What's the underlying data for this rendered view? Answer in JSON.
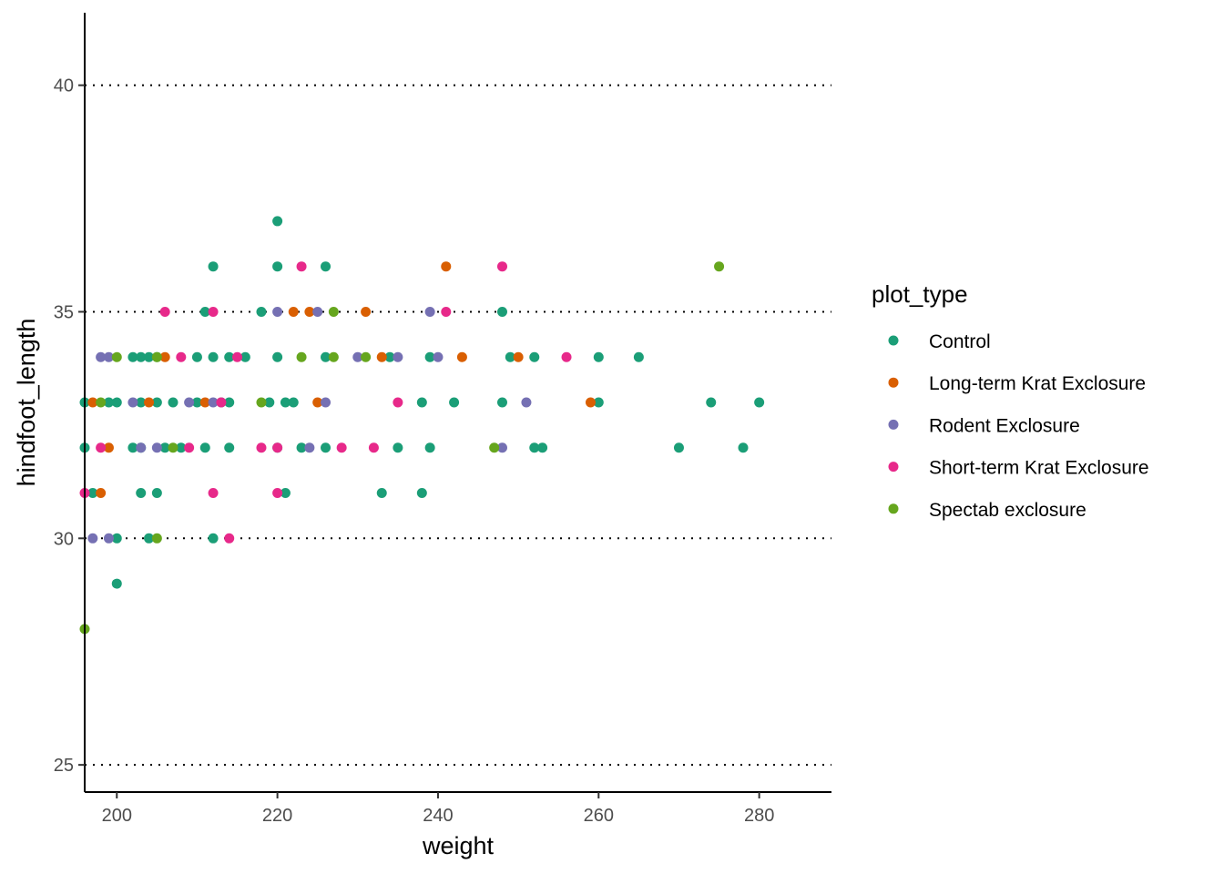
{
  "chart_data": {
    "type": "scatter",
    "title": "",
    "xlabel": "weight",
    "ylabel": "hindfoot_length",
    "xlim": [
      196,
      289
    ],
    "ylim": [
      24.4,
      41.6
    ],
    "x_ticks": [
      200,
      220,
      240,
      260,
      280
    ],
    "y_ticks": [
      25,
      30,
      35,
      40
    ],
    "grid": "horizontal dotted major lines",
    "legend": {
      "title": "plot_type",
      "placement": "right"
    },
    "series": [
      {
        "name": "Control",
        "color": "#1b9e77",
        "points": [
          [
            212,
            36
          ],
          [
            220,
            37
          ],
          [
            220,
            36
          ],
          [
            226,
            36
          ],
          [
            211,
            35
          ],
          [
            218,
            35
          ],
          [
            248,
            35
          ],
          [
            202,
            34
          ],
          [
            203,
            34
          ],
          [
            204,
            34
          ],
          [
            205,
            34
          ],
          [
            210,
            34
          ],
          [
            212,
            34
          ],
          [
            214,
            34
          ],
          [
            216,
            34
          ],
          [
            220,
            34
          ],
          [
            226,
            34
          ],
          [
            234,
            34
          ],
          [
            239,
            34
          ],
          [
            249,
            34
          ],
          [
            252,
            34
          ],
          [
            260,
            34
          ],
          [
            265,
            34
          ],
          [
            196,
            33
          ],
          [
            199,
            33
          ],
          [
            200,
            33
          ],
          [
            203,
            33
          ],
          [
            205,
            33
          ],
          [
            207,
            33
          ],
          [
            210,
            33
          ],
          [
            213,
            33
          ],
          [
            214,
            33
          ],
          [
            219,
            33
          ],
          [
            221,
            33
          ],
          [
            222,
            33
          ],
          [
            238,
            33
          ],
          [
            242,
            33
          ],
          [
            248,
            33
          ],
          [
            260,
            33
          ],
          [
            274,
            33
          ],
          [
            280,
            33
          ],
          [
            196,
            32
          ],
          [
            202,
            32
          ],
          [
            203,
            32
          ],
          [
            206,
            32
          ],
          [
            208,
            32
          ],
          [
            211,
            32
          ],
          [
            214,
            32
          ],
          [
            220,
            32
          ],
          [
            223,
            32
          ],
          [
            226,
            32
          ],
          [
            235,
            32
          ],
          [
            239,
            32
          ],
          [
            252,
            32
          ],
          [
            253,
            32
          ],
          [
            270,
            32
          ],
          [
            278,
            32
          ],
          [
            197,
            31
          ],
          [
            203,
            31
          ],
          [
            205,
            31
          ],
          [
            221,
            31
          ],
          [
            233,
            31
          ],
          [
            238,
            31
          ],
          [
            200,
            30
          ],
          [
            204,
            30
          ],
          [
            212,
            30
          ],
          [
            200,
            29
          ]
        ]
      },
      {
        "name": "Long-term Krat Exclosure",
        "color": "#d95f02",
        "points": [
          [
            241,
            36
          ],
          [
            222,
            35
          ],
          [
            224,
            35
          ],
          [
            231,
            35
          ],
          [
            206,
            34
          ],
          [
            233,
            34
          ],
          [
            243,
            34
          ],
          [
            250,
            34
          ],
          [
            197,
            33
          ],
          [
            204,
            33
          ],
          [
            211,
            33
          ],
          [
            225,
            33
          ],
          [
            259,
            33
          ],
          [
            199,
            32
          ],
          [
            198,
            31
          ]
        ]
      },
      {
        "name": "Rodent Exclosure",
        "color": "#7570b3",
        "points": [
          [
            220,
            35
          ],
          [
            225,
            35
          ],
          [
            239,
            35
          ],
          [
            198,
            34
          ],
          [
            199,
            34
          ],
          [
            230,
            34
          ],
          [
            235,
            34
          ],
          [
            240,
            34
          ],
          [
            202,
            33
          ],
          [
            209,
            33
          ],
          [
            212,
            33
          ],
          [
            226,
            33
          ],
          [
            251,
            33
          ],
          [
            203,
            32
          ],
          [
            205,
            32
          ],
          [
            224,
            32
          ],
          [
            248,
            32
          ],
          [
            197,
            30
          ],
          [
            199,
            30
          ]
        ]
      },
      {
        "name": "Short-term Krat Exclosure",
        "color": "#e7298a",
        "points": [
          [
            223,
            36
          ],
          [
            248,
            36
          ],
          [
            206,
            35
          ],
          [
            212,
            35
          ],
          [
            241,
            35
          ],
          [
            208,
            34
          ],
          [
            215,
            34
          ],
          [
            256,
            34
          ],
          [
            213,
            33
          ],
          [
            235,
            33
          ],
          [
            198,
            32
          ],
          [
            209,
            32
          ],
          [
            218,
            32
          ],
          [
            220,
            32
          ],
          [
            228,
            32
          ],
          [
            232,
            32
          ],
          [
            196,
            31
          ],
          [
            212,
            31
          ],
          [
            220,
            31
          ],
          [
            214,
            30
          ]
        ]
      },
      {
        "name": "Spectab exclosure",
        "color": "#66a61e",
        "points": [
          [
            275,
            36
          ],
          [
            227,
            35
          ],
          [
            200,
            34
          ],
          [
            205,
            34
          ],
          [
            223,
            34
          ],
          [
            227,
            34
          ],
          [
            231,
            34
          ],
          [
            198,
            33
          ],
          [
            218,
            33
          ],
          [
            207,
            32
          ],
          [
            247,
            32
          ],
          [
            205,
            30
          ],
          [
            196,
            28
          ]
        ]
      }
    ]
  }
}
